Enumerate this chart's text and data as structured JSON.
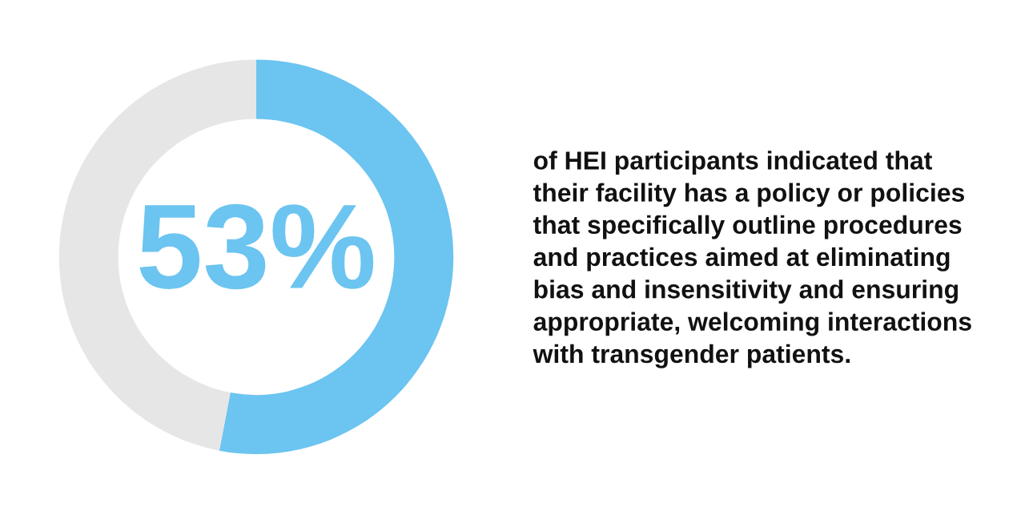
{
  "chart_data": {
    "type": "donut",
    "categories": [
      null,
      null
    ],
    "values": [
      53,
      47
    ],
    "colors": [
      "#6cc4f0",
      "#e6e6e6"
    ],
    "value_labels": [
      "53%",
      null
    ],
    "annotations": [
      "of HEI participants indicated that\ntheir facility has a policy or policies\nthat specifically outline procedures\nand practices aimed at eliminating\nbias and insensitivity and ensuring\nappropriate, welcoming interactions\nwith transgender patients."
    ]
  }
}
